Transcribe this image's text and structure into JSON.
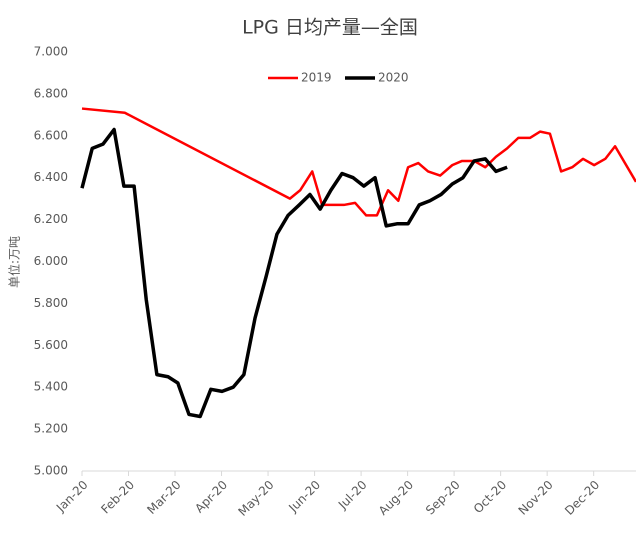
{
  "chart_data": {
    "type": "line",
    "title": "LPG 日均产量—全国",
    "ylabel": "单位:万吨",
    "xlim": [
      0,
      11.91
    ],
    "xticks": [
      {
        "value": 0,
        "label": "Jan-20"
      },
      {
        "value": 1,
        "label": "Feb-20"
      },
      {
        "value": 2,
        "label": "Mar-20"
      },
      {
        "value": 3,
        "label": "Apr-20"
      },
      {
        "value": 4,
        "label": "May-20"
      },
      {
        "value": 5,
        "label": "Jun-20"
      },
      {
        "value": 6,
        "label": "Jul-20"
      },
      {
        "value": 7,
        "label": "Aug-20"
      },
      {
        "value": 8,
        "label": "Sep-20"
      },
      {
        "value": 9,
        "label": "Oct-20"
      },
      {
        "value": 10,
        "label": "Nov-20"
      },
      {
        "value": 11,
        "label": "Dec-20"
      }
    ],
    "ylim": [
      5,
      7
    ],
    "yticks": [
      {
        "value": 5,
        "label": "5.000"
      },
      {
        "value": 5.2,
        "label": "5.200"
      },
      {
        "value": 5.4,
        "label": "5.400"
      },
      {
        "value": 5.6,
        "label": "5.600"
      },
      {
        "value": 5.8,
        "label": "5.800"
      },
      {
        "value": 6,
        "label": "6.000"
      },
      {
        "value": 6.2,
        "label": "6.200"
      },
      {
        "value": 6.4,
        "label": "6.400"
      },
      {
        "value": 6.6,
        "label": "6.600"
      },
      {
        "value": 6.8,
        "label": "6.800"
      },
      {
        "value": 7,
        "label": "7.000"
      }
    ],
    "legend": "top",
    "series": [
      {
        "name": "2019",
        "color": "#ff0000",
        "x": [
          0,
          0.92,
          4.47,
          4.69,
          4.95,
          5.16,
          5.4,
          5.63,
          5.87,
          6.11,
          6.34,
          6.58,
          6.8,
          7.01,
          7.23,
          7.44,
          7.7,
          7.96,
          8.17,
          8.43,
          8.67,
          8.9,
          9.14,
          9.38,
          9.63,
          9.85,
          10.06,
          10.3,
          10.54,
          10.77,
          11.01,
          11.25,
          11.46,
          11.91
        ],
        "values": [
          6.73,
          6.71,
          6.3,
          6.34,
          6.43,
          6.27,
          6.27,
          6.27,
          6.28,
          6.22,
          6.22,
          6.34,
          6.29,
          6.45,
          6.47,
          6.43,
          6.41,
          6.46,
          6.48,
          6.48,
          6.45,
          6.5,
          6.54,
          6.59,
          6.59,
          6.62,
          6.61,
          6.43,
          6.45,
          6.49,
          6.46,
          6.49,
          6.55,
          6.38
        ]
      },
      {
        "name": "2020",
        "color": "#000000",
        "x": [
          0,
          0.22,
          0.45,
          0.69,
          0.9,
          1.12,
          1.38,
          1.61,
          1.85,
          2.06,
          2.3,
          2.54,
          2.77,
          3.01,
          3.25,
          3.48,
          3.72,
          3.96,
          4.19,
          4.43,
          4.67,
          4.9,
          5.12,
          5.35,
          5.59,
          5.83,
          6.06,
          6.3,
          6.54,
          6.77,
          7.01,
          7.25,
          7.48,
          7.72,
          7.96,
          8.19,
          8.43,
          8.67,
          8.9,
          9.14
        ],
        "values": [
          6.35,
          6.54,
          6.56,
          6.63,
          6.36,
          6.36,
          5.82,
          5.46,
          5.45,
          5.42,
          5.27,
          5.26,
          5.39,
          5.38,
          5.4,
          5.46,
          5.73,
          5.93,
          6.13,
          6.22,
          6.27,
          6.32,
          6.25,
          6.34,
          6.42,
          6.4,
          6.36,
          6.4,
          6.17,
          6.18,
          6.18,
          6.27,
          6.29,
          6.32,
          6.37,
          6.4,
          6.48,
          6.49,
          6.43,
          6.45
        ]
      }
    ]
  }
}
